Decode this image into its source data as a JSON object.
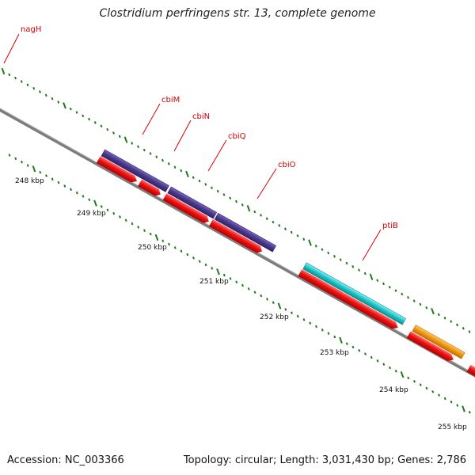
{
  "title": "Clostridium perfringens str. 13, complete genome",
  "footer": {
    "accession_label": "Accession:",
    "accession_value": "NC_003366",
    "topology": "Topology: circular; Length: 3,031,430 bp; Genes: 2,786"
  },
  "scale_labels": [
    "248 kbp",
    "249 kbp",
    "250 kbp",
    "251 kbp",
    "252 kbp",
    "253 kbp",
    "254 kbp",
    "255 kbp"
  ],
  "gene_labels": [
    "nagH",
    "cbiM",
    "cbiN",
    "cbiQ",
    "cbiO",
    "ptiB"
  ],
  "colors": {
    "backbone": "#8a8a8a",
    "cds": "#ee1111",
    "cbi_genes": "#4b3a8c",
    "ptiB": "#20c8cc",
    "orange_feature": "#f39a12",
    "tick_marks": "#1f7a1f",
    "label_text": "#cc0000",
    "leader_lines": "#dd0000"
  }
}
